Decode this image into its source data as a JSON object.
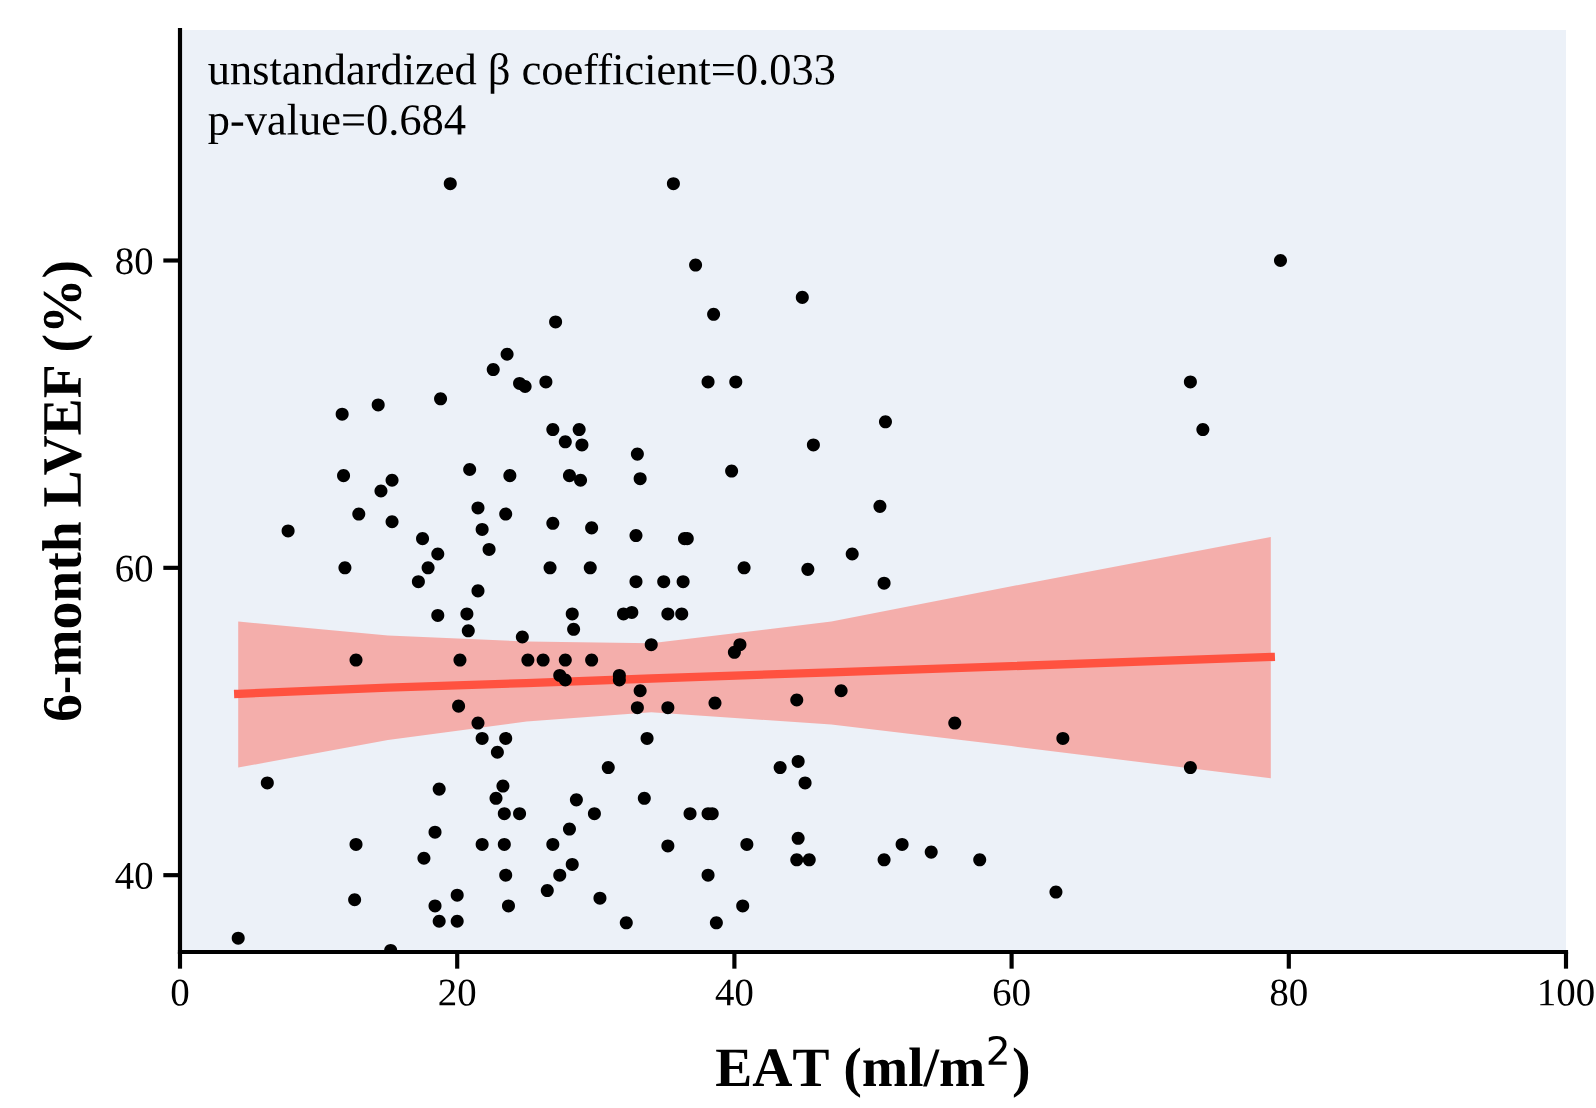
{
  "chart_data": {
    "type": "scatter",
    "xlabel": "EAT (ml/m$^{2}$)",
    "ylabel": "6-month LVEF (%)",
    "annotations": [
      "unstandardized β coefficient=0.033",
      "p-value=0.684"
    ],
    "xlim": [
      0,
      100
    ],
    "ylim": [
      35,
      95
    ],
    "xticks": [
      0,
      20,
      40,
      60,
      80,
      100
    ],
    "yticks": [
      40,
      60,
      80
    ],
    "grid": false,
    "legend": false,
    "series": [
      {
        "color": "#000000",
        "marker": "circle",
        "x": [
          19.5,
          23.6,
          22.6,
          24.5,
          24.9,
          11.7,
          14.3,
          18.8,
          11.8,
          20.9,
          23.8,
          15.3,
          14.5,
          12.9,
          21.5,
          23.5,
          15.3,
          21.8,
          7.8,
          17.5,
          22.3,
          18.6,
          17.9,
          11.9,
          17.2,
          21.5,
          18.6,
          20.7,
          20.8,
          24.7,
          12.7,
          20.2,
          25.1,
          20.1,
          21.5,
          21.8,
          23.5,
          22.9,
          6.3,
          18.7,
          23.3,
          22.8,
          23.4,
          24.5,
          18.4,
          12.7,
          21.8,
          23.4,
          17.6,
          23.5,
          12.6,
          20.0,
          18.4,
          23.7,
          18.7,
          20.0,
          4.2,
          15.2,
          35.6,
          37.2,
          44.9,
          27.1,
          38.5,
          26.4,
          38.1,
          40.1,
          26.9,
          28.8,
          27.8,
          29.0,
          33.0,
          45.7,
          28.1,
          28.9,
          33.2,
          39.8,
          26.9,
          29.7,
          32.9,
          36.4,
          36.6,
          26.7,
          29.6,
          40.7,
          45.3,
          32.9,
          34.9,
          36.3,
          28.3,
          28.4,
          32.0,
          32.6,
          35.2,
          36.2,
          34.0,
          40.0,
          40.4,
          26.2,
          27.8,
          29.7,
          27.4,
          27.8,
          31.7,
          31.7,
          33.2,
          33.0,
          35.2,
          38.6,
          44.5,
          47.7,
          33.7,
          30.9,
          43.3,
          44.6,
          45.1,
          33.5,
          28.6,
          29.9,
          36.8,
          38.1,
          38.4,
          28.1,
          26.9,
          35.2,
          40.9,
          44.6,
          44.5,
          45.4,
          28.3,
          27.4,
          38.1,
          26.5,
          30.3,
          40.6,
          32.2,
          38.7,
          79.4,
          72.9,
          73.8,
          50.9,
          50.5,
          48.5,
          50.8,
          55.9,
          63.7,
          72.9,
          50.8,
          52.1,
          54.2,
          57.7,
          63.2
        ],
        "values": [
          85.0,
          73.9,
          72.9,
          72.0,
          71.8,
          70.0,
          70.6,
          71.0,
          66.0,
          66.4,
          66.0,
          65.7,
          65.0,
          63.5,
          63.9,
          63.5,
          63.0,
          62.5,
          62.4,
          61.9,
          61.2,
          60.9,
          60.0,
          60.0,
          59.1,
          58.5,
          56.9,
          57.0,
          55.9,
          55.5,
          54.0,
          54.0,
          54.0,
          51.0,
          49.9,
          48.9,
          48.9,
          48.0,
          46.0,
          45.6,
          45.8,
          45.0,
          44.0,
          44.0,
          42.8,
          42.0,
          42.0,
          42.0,
          41.1,
          40.0,
          38.4,
          38.7,
          38.0,
          38.0,
          37.0,
          37.0,
          35.9,
          35.1,
          85.0,
          79.7,
          77.6,
          76.0,
          76.5,
          72.1,
          72.1,
          72.1,
          69.0,
          69.0,
          68.2,
          68.0,
          67.4,
          68.0,
          66.0,
          65.7,
          65.8,
          66.3,
          62.9,
          62.6,
          62.1,
          61.9,
          61.9,
          60.0,
          60.0,
          60.0,
          59.9,
          59.1,
          59.1,
          59.1,
          57.0,
          56.0,
          57.0,
          57.1,
          57.0,
          57.0,
          55.0,
          54.5,
          55.0,
          54.0,
          54.0,
          54.0,
          53.0,
          52.7,
          53.0,
          52.7,
          52.0,
          50.9,
          50.9,
          51.2,
          51.4,
          52.0,
          48.9,
          47.0,
          47.0,
          47.4,
          46.0,
          45.0,
          44.9,
          44.0,
          44.0,
          44.0,
          44.0,
          43.0,
          42.0,
          41.9,
          42.0,
          42.4,
          41.0,
          41.0,
          40.7,
          40.0,
          40.0,
          39.0,
          38.5,
          38.0,
          36.9,
          36.9,
          80.0,
          72.1,
          69.0,
          69.5,
          64.0,
          60.9,
          59.0,
          49.9,
          48.9,
          47.0,
          41.0,
          42.0,
          41.5,
          41.0,
          38.9
        ]
      },
      {
        "type": "line",
        "color": "#ff5240",
        "x": [
          4.2,
          15,
          25,
          34,
          47,
          60,
          78.7
        ],
        "values": [
          51.8,
          52.2,
          52.5,
          52.8,
          53.2,
          53.6,
          54.2
        ],
        "lower": [
          47.0,
          48.8,
          50.0,
          50.6,
          49.8,
          48.4,
          46.3
        ],
        "upper": [
          56.5,
          55.6,
          55.2,
          55.1,
          56.5,
          58.8,
          62.0
        ]
      }
    ]
  }
}
